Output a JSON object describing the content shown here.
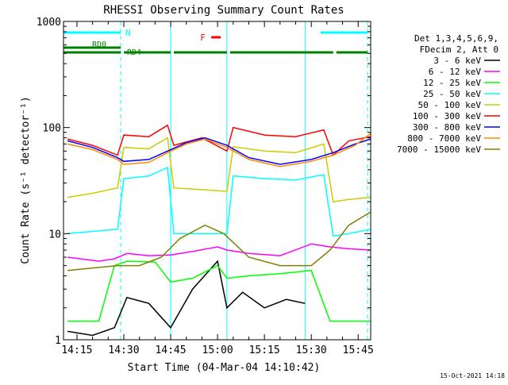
{
  "chart_data": {
    "type": "line",
    "title": "RHESSI Observing Summary Count Rates",
    "xlabel": "Start Time (04-Mar-04 14:10:42)",
    "ylabel": "Count Rate (s⁻¹ detector⁻¹)",
    "y_scale": "log",
    "ylim": [
      1,
      1000
    ],
    "xlim": [
      "14:10:42",
      "15:49:00"
    ],
    "x_ticks": [
      "14:15",
      "14:30",
      "14:45",
      "15:00",
      "15:15",
      "15:30",
      "15:45"
    ],
    "y_ticks": [
      "1",
      "10",
      "100",
      "1000"
    ],
    "grid": false,
    "legend_position": "right",
    "legend_header": [
      "Det 1,3,4,5,6,9,",
      "FDecim 2, Att 0"
    ],
    "footer_date": "15-Oct-2021 14:18",
    "flag_labels": {
      "night": "N",
      "rd0": "RD0",
      "rd4": "RD4",
      "flare": "F"
    },
    "colors": {
      "night": "#00ffff",
      "rd": "#008000",
      "flare": "#ff0000",
      "axes": "#000000"
    },
    "series": [
      {
        "name": "3 - 6 keV",
        "color": "#000000",
        "x": [
          "14:12",
          "14:20",
          "14:27",
          "14:31",
          "14:38",
          "14:45",
          "14:52",
          "15:00",
          "15:03",
          "15:08",
          "15:15",
          "15:22",
          "15:28"
        ],
        "y": [
          1.2,
          1.1,
          1.3,
          2.5,
          2.2,
          1.3,
          3.0,
          5.5,
          2.0,
          2.8,
          2.0,
          2.4,
          2.2
        ]
      },
      {
        "name": "6 - 12 keV",
        "color": "#ff00ff",
        "x": [
          "14:12",
          "14:22",
          "14:27",
          "14:31",
          "14:38",
          "14:45",
          "14:52",
          "15:00",
          "15:03",
          "15:10",
          "15:20",
          "15:30",
          "15:36",
          "15:42",
          "15:49"
        ],
        "y": [
          6.0,
          5.5,
          5.8,
          6.5,
          6.2,
          6.3,
          6.8,
          7.5,
          7.0,
          6.5,
          6.2,
          8.0,
          7.5,
          7.2,
          7.0
        ]
      },
      {
        "name": "12 - 25 keV",
        "color": "#00ff00",
        "x": [
          "14:12",
          "14:22",
          "14:27",
          "14:31",
          "14:40",
          "14:45",
          "14:52",
          "15:00",
          "15:03",
          "15:10",
          "15:20",
          "15:30",
          "15:36",
          "15:42",
          "15:49"
        ],
        "y": [
          1.5,
          1.5,
          5.0,
          5.5,
          5.4,
          3.5,
          3.8,
          5.0,
          3.8,
          4.0,
          4.2,
          4.5,
          1.5,
          1.5,
          1.5
        ]
      },
      {
        "name": "25 - 50 keV",
        "color": "#00ffff",
        "x": [
          "14:12",
          "14:20",
          "14:28",
          "14:30",
          "14:38",
          "14:44",
          "14:46",
          "14:55",
          "15:03",
          "15:05",
          "15:15",
          "15:25",
          "15:34",
          "15:37",
          "15:42",
          "15:49"
        ],
        "y": [
          10,
          10.5,
          11,
          33,
          35,
          42,
          10,
          10,
          10,
          35,
          33,
          32,
          36,
          9.5,
          10,
          11
        ]
      },
      {
        "name": "50 - 100 keV",
        "color": "#cccc00",
        "x": [
          "14:12",
          "14:20",
          "14:28",
          "14:30",
          "14:38",
          "14:44",
          "14:46",
          "14:55",
          "15:03",
          "15:05",
          "15:15",
          "15:25",
          "15:34",
          "15:37",
          "15:42",
          "15:49"
        ],
        "y": [
          22,
          24,
          27,
          65,
          63,
          80,
          27,
          26,
          25,
          66,
          60,
          58,
          70,
          20,
          21,
          22
        ]
      },
      {
        "name": "100 - 300 keV",
        "color": "#ff0000",
        "x": [
          "14:12",
          "14:20",
          "14:28",
          "14:30",
          "14:38",
          "14:44",
          "14:46",
          "14:55",
          "15:03",
          "15:05",
          "15:15",
          "15:25",
          "15:34",
          "15:37",
          "15:42",
          "15:49"
        ],
        "y": [
          78,
          68,
          55,
          85,
          82,
          105,
          68,
          80,
          60,
          100,
          85,
          82,
          95,
          55,
          75,
          82
        ]
      },
      {
        "name": "300 - 800 keV",
        "color": "#0000ff",
        "x": [
          "14:12",
          "14:20",
          "14:28",
          "14:30",
          "14:38",
          "14:44",
          "14:50",
          "14:56",
          "15:03",
          "15:10",
          "15:20",
          "15:30",
          "15:37",
          "15:44",
          "15:49"
        ],
        "y": [
          75,
          65,
          52,
          48,
          50,
          60,
          72,
          80,
          68,
          52,
          45,
          50,
          58,
          70,
          78
        ]
      },
      {
        "name": "800 - 7000 keV",
        "color": "#ff8800",
        "x": [
          "14:12",
          "14:20",
          "14:28",
          "14:30",
          "14:38",
          "14:44",
          "14:50",
          "14:56",
          "15:03",
          "15:10",
          "15:20",
          "15:30",
          "15:37",
          "15:44",
          "15:49"
        ],
        "y": [
          70,
          62,
          50,
          45,
          47,
          58,
          70,
          78,
          65,
          50,
          43,
          48,
          55,
          68,
          88
        ]
      },
      {
        "name": "7000 - 15000 keV",
        "color": "#808000",
        "x": [
          "14:12",
          "14:22",
          "14:28",
          "14:35",
          "14:42",
          "14:48",
          "14:56",
          "15:02",
          "15:10",
          "15:20",
          "15:30",
          "15:36",
          "15:42",
          "15:49"
        ],
        "y": [
          4.5,
          4.8,
          5.0,
          5.0,
          6.0,
          9.0,
          12.0,
          10.0,
          6.0,
          5.0,
          5.0,
          7.0,
          12.0,
          16.0
        ]
      }
    ],
    "flags": {
      "night_intervals": [
        [
          "14:10:42",
          "14:29"
        ],
        [
          "15:33",
          "15:48"
        ]
      ],
      "dashed_boundaries": [
        "14:29",
        "15:48"
      ],
      "solid_boundaries": [
        "14:45",
        "15:03",
        "15:28"
      ],
      "rd0_intervals": [
        [
          "14:10:42",
          "14:29"
        ]
      ],
      "rd4_intervals": [
        [
          "14:10:42",
          "14:29"
        ],
        [
          "14:30",
          "14:45"
        ],
        [
          "14:46",
          "15:03"
        ],
        [
          "15:04",
          "15:37"
        ],
        [
          "15:38",
          "15:48"
        ]
      ],
      "flare_intervals": [
        [
          "14:58",
          "15:01"
        ]
      ]
    }
  }
}
